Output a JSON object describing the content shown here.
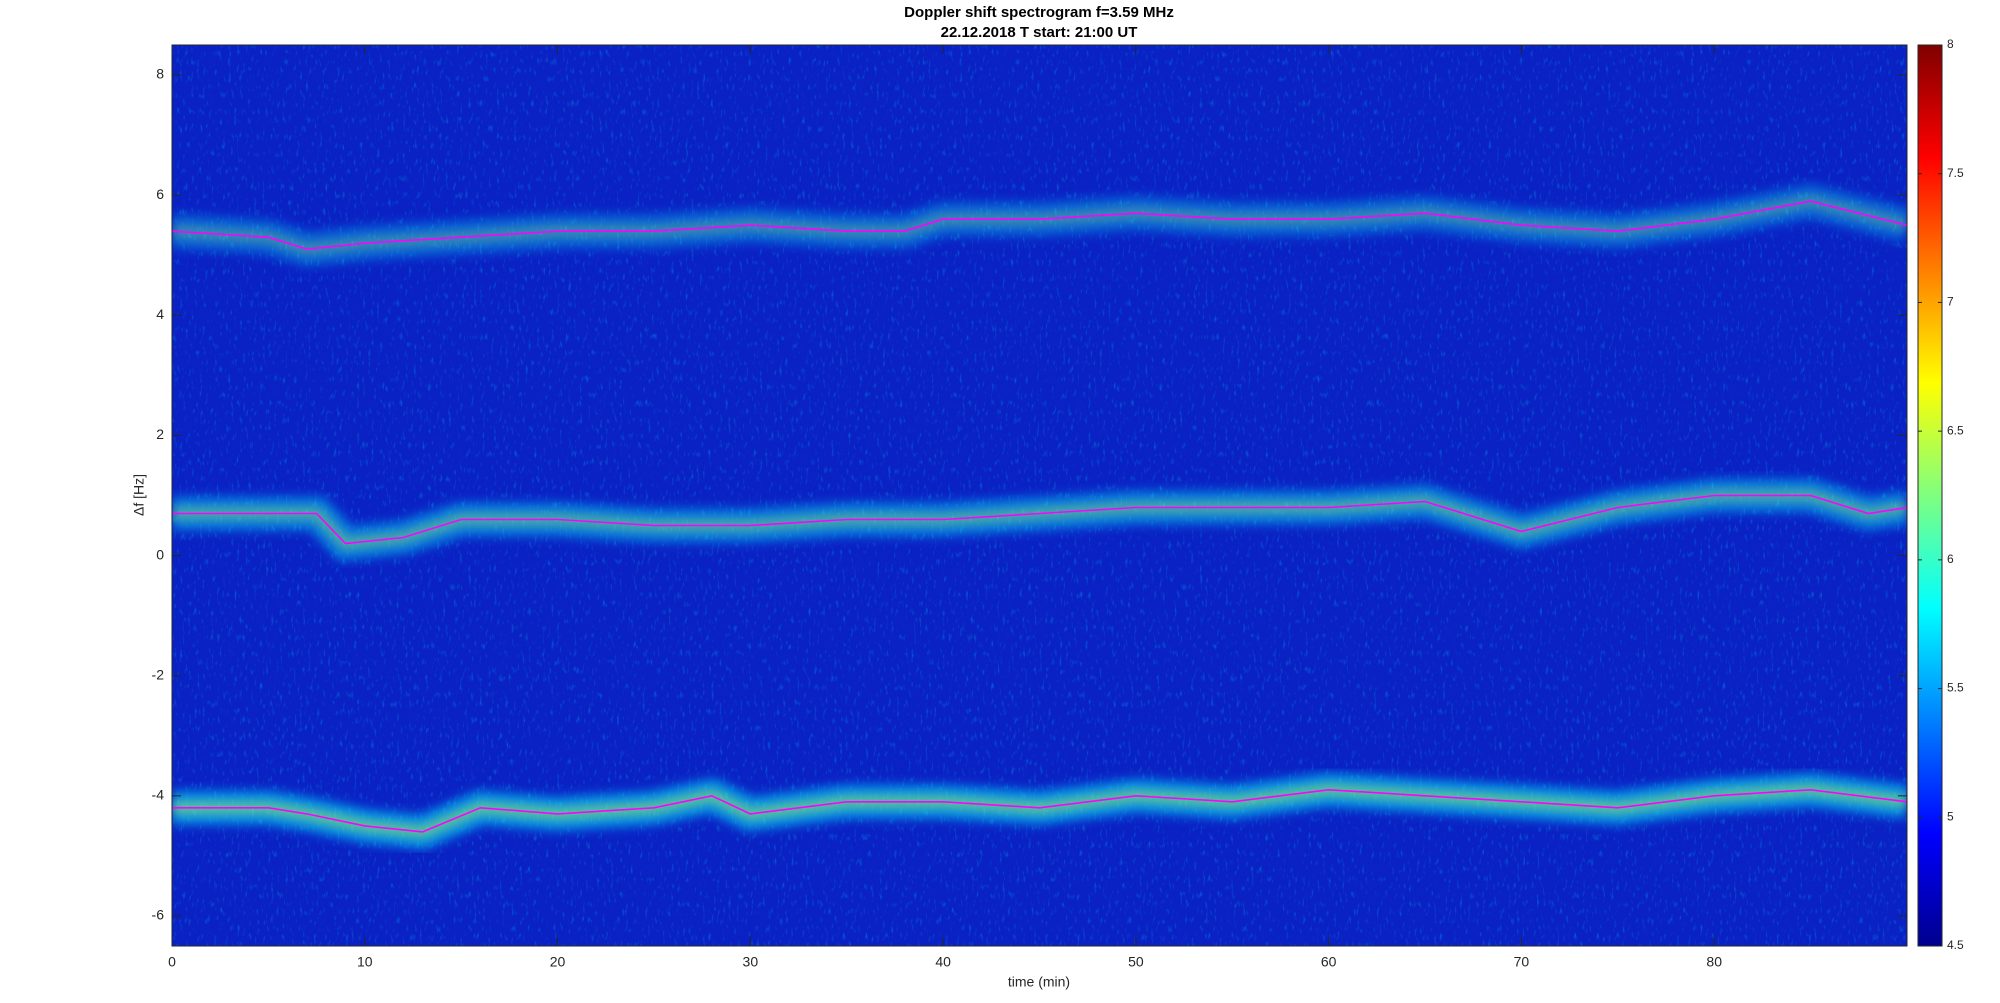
{
  "chart_data": {
    "type": "spectrogram",
    "title": "Doppler shift spectrogram f=3.59 MHz",
    "subtitle": "22.12.2018   T start: 21:00 UT",
    "xlabel": "time (min)",
    "ylabel": "Δf [Hz]",
    "xlim": [
      0,
      90
    ],
    "xticks": [
      0,
      10,
      20,
      30,
      40,
      50,
      60,
      70,
      80
    ],
    "ylim": [
      -6.5,
      8.5
    ],
    "yticks": [
      -6,
      -4,
      -2,
      0,
      2,
      4,
      6,
      8
    ],
    "colormap": "jet",
    "clim": [
      4.5,
      8
    ],
    "cticks": [
      4.5,
      5,
      5.5,
      6,
      6.5,
      7,
      7.5,
      8
    ],
    "series": [
      {
        "color": "#ff00ff",
        "x": [
          0,
          5,
          7,
          10,
          15,
          20,
          25,
          30,
          35,
          38,
          40,
          45,
          50,
          55,
          60,
          65,
          70,
          75,
          80,
          85,
          90
        ],
        "values": [
          5.4,
          5.3,
          5.1,
          5.2,
          5.3,
          5.4,
          5.4,
          5.5,
          5.4,
          5.4,
          5.6,
          5.6,
          5.7,
          5.6,
          5.6,
          5.7,
          5.5,
          5.4,
          5.6,
          5.9,
          5.5
        ]
      },
      {
        "color": "#ff00ff",
        "x": [
          0,
          7.5,
          9,
          12,
          15,
          20,
          25,
          30,
          35,
          40,
          45,
          50,
          55,
          60,
          65,
          70,
          75,
          80,
          85,
          88,
          90
        ],
        "values": [
          0.7,
          0.7,
          0.2,
          0.3,
          0.6,
          0.6,
          0.5,
          0.5,
          0.6,
          0.6,
          0.7,
          0.8,
          0.8,
          0.8,
          0.9,
          0.4,
          0.8,
          1.0,
          1.0,
          0.7,
          0.8
        ]
      },
      {
        "color": "#ff00ff",
        "x": [
          0,
          5,
          7,
          10,
          13,
          16,
          20,
          25,
          28,
          30,
          35,
          40,
          45,
          50,
          55,
          60,
          65,
          70,
          75,
          80,
          85,
          90
        ],
        "values": [
          -4.2,
          -4.2,
          -4.3,
          -4.5,
          -4.6,
          -4.2,
          -4.3,
          -4.2,
          -4.0,
          -4.3,
          -4.1,
          -4.1,
          -4.2,
          -4.0,
          -4.1,
          -3.9,
          -4.0,
          -4.1,
          -4.2,
          -4.0,
          -3.9,
          -4.1
        ]
      }
    ]
  }
}
